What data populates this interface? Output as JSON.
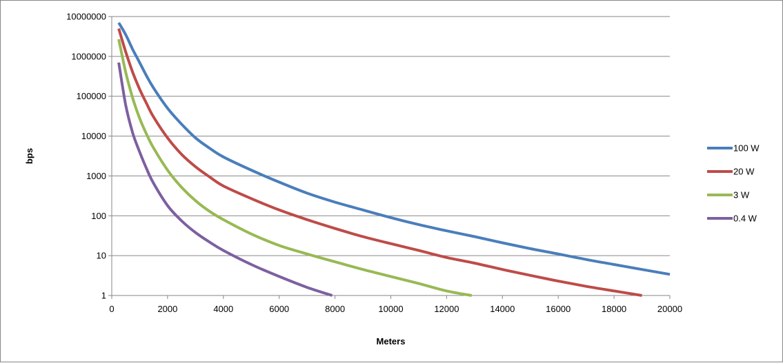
{
  "chart_data": {
    "type": "line",
    "title": "",
    "xlabel": "Meters",
    "ylabel": "bps",
    "xlim": [
      0,
      20000
    ],
    "ylim": [
      1,
      10000000
    ],
    "y_scale": "log",
    "grid": "horizontal",
    "legend_position": "right",
    "x_ticks": [
      "0",
      "2000",
      "4000",
      "6000",
      "8000",
      "10000",
      "12000",
      "14000",
      "16000",
      "18000",
      "20000"
    ],
    "y_ticks": [
      "1",
      "10",
      "100",
      "1000",
      "10000",
      "100000",
      "1000000",
      "10000000"
    ],
    "series": [
      {
        "name": "100 W",
        "color": "#4a7ebb",
        "x": [
          250,
          500,
          750,
          1000,
          1250,
          1500,
          2000,
          2500,
          3000,
          3500,
          4000,
          5000,
          6000,
          7000,
          8000,
          9000,
          10000,
          11000,
          12000,
          13000,
          14000,
          15000,
          16000,
          17000,
          18000,
          19000,
          20000
        ],
        "y": [
          7000000,
          3500000,
          1500000,
          700000,
          320000,
          160000,
          50000,
          20000,
          9000,
          5000,
          3000,
          1400,
          700,
          370,
          220,
          140,
          90,
          60,
          42,
          30,
          21,
          15,
          11,
          8,
          6,
          4.5,
          3.4
        ]
      },
      {
        "name": "20 W",
        "color": "#be4b48",
        "x": [
          250,
          500,
          750,
          1000,
          1250,
          1500,
          2000,
          2500,
          3000,
          3500,
          4000,
          5000,
          6000,
          7000,
          8000,
          9000,
          10000,
          11000,
          12000,
          13000,
          14000,
          15000,
          16000,
          17000,
          18000,
          19000
        ],
        "y": [
          5000000,
          1300000,
          400000,
          150000,
          65000,
          30000,
          9000,
          3500,
          1700,
          950,
          560,
          270,
          140,
          80,
          48,
          30,
          20,
          13.5,
          9,
          6.5,
          4.5,
          3.2,
          2.3,
          1.7,
          1.3,
          1
        ]
      },
      {
        "name": "3 W",
        "color": "#98b954",
        "x": [
          250,
          500,
          750,
          1000,
          1250,
          1500,
          2000,
          2500,
          3000,
          3500,
          4000,
          5000,
          6000,
          7000,
          8000,
          9000,
          10000,
          11000,
          12000,
          12900
        ],
        "y": [
          2700000,
          400000,
          90000,
          28000,
          11000,
          5000,
          1400,
          520,
          240,
          130,
          80,
          35,
          18,
          11,
          7,
          4.5,
          3,
          2,
          1.3,
          1
        ]
      },
      {
        "name": "0.4 W",
        "color": "#7d60a0",
        "x": [
          250,
          500,
          750,
          1000,
          1250,
          1500,
          2000,
          2500,
          3000,
          3500,
          4000,
          5000,
          6000,
          7000,
          7900
        ],
        "y": [
          700000,
          60000,
          12000,
          4000,
          1500,
          650,
          180,
          75,
          38,
          22,
          13.5,
          6,
          3,
          1.6,
          1
        ]
      }
    ]
  }
}
